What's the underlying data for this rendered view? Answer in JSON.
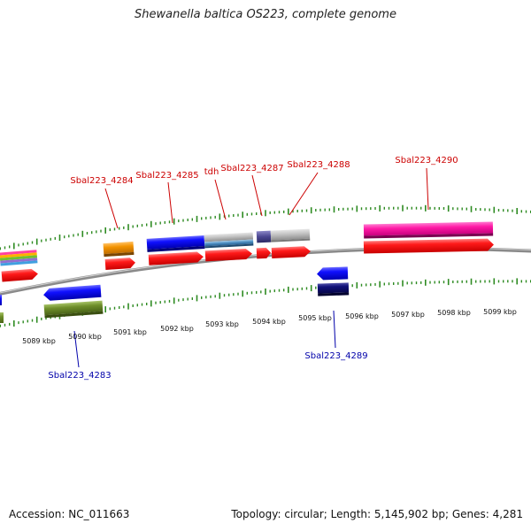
{
  "title": "Shewanella baltica OS223, complete genome",
  "footer": {
    "accession": "Accession: NC_011663",
    "summary": "Topology: circular; Length: 5,145,902 bp; Genes: 4,281"
  },
  "colors": {
    "backbone": "#8a8a8a",
    "tick": "#2e8b22",
    "cds": "#ff0000",
    "label_forward": "#cc0000",
    "label_reverse": "#0000aa",
    "tick_label": "#111111"
  },
  "scale_labels": [
    "5089 kbp",
    "5090 kbp",
    "5091 kbp",
    "5092 kbp",
    "5093 kbp",
    "5094 kbp",
    "5095 kbp",
    "5096 kbp",
    "5097 kbp",
    "5098 kbp",
    "5099 kbp"
  ],
  "gene_labels": [
    {
      "text": "Sbal223_4284",
      "strand": "forward"
    },
    {
      "text": "Sbal223_4285",
      "strand": "forward"
    },
    {
      "text": "tdh",
      "strand": "forward"
    },
    {
      "text": "Sbal223_4287",
      "strand": "forward"
    },
    {
      "text": "Sbal223_4288",
      "strand": "forward"
    },
    {
      "text": "Sbal223_4290",
      "strand": "forward"
    },
    {
      "text": "Sbal223_4283",
      "strand": "reverse"
    },
    {
      "text": "Sbal223_4289",
      "strand": "reverse"
    }
  ]
}
